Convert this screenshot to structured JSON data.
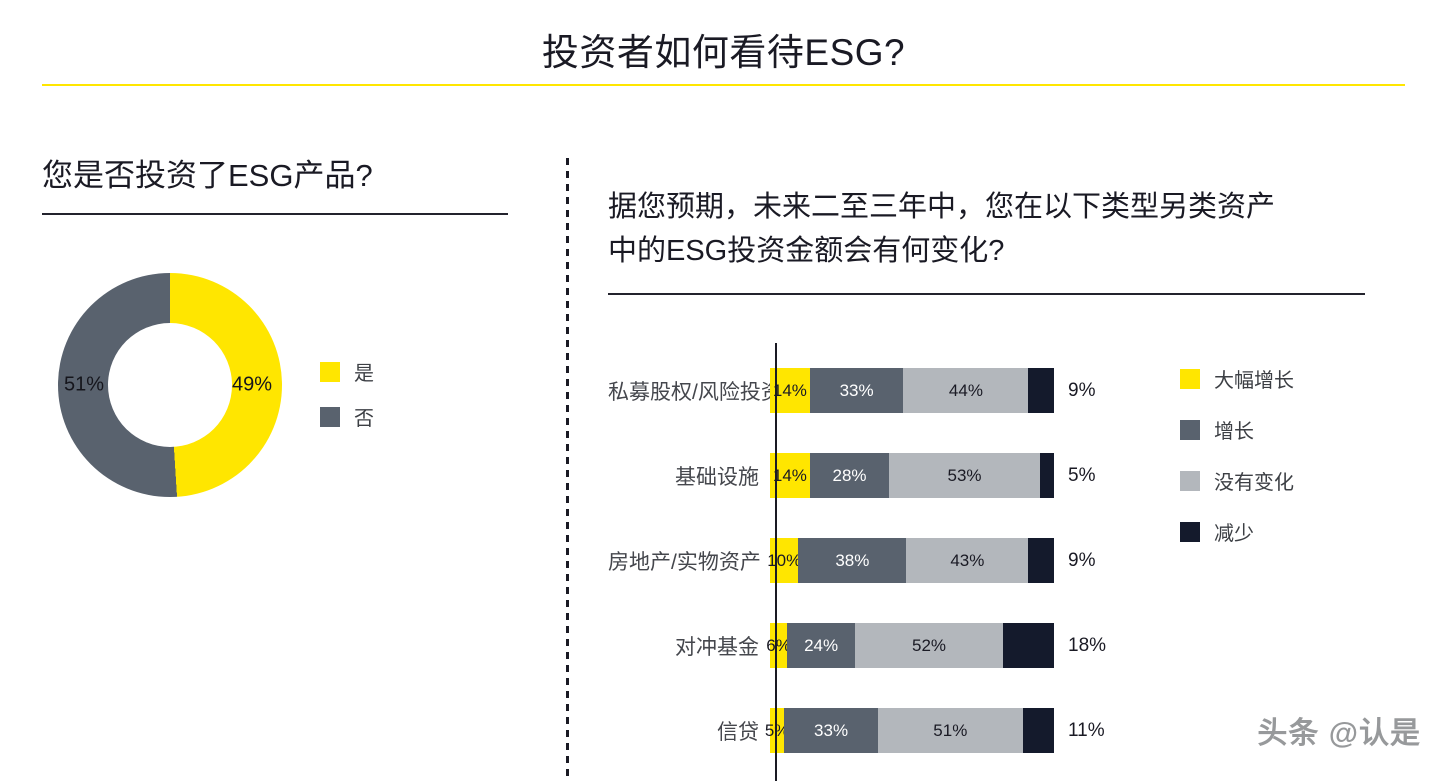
{
  "page": {
    "title": "投资者如何看待ESG?",
    "watermark": "头条 @认是",
    "accent_color": "#FFE600"
  },
  "chart_data": [
    {
      "type": "pie",
      "donut": true,
      "title": "您是否投资了ESG产品?",
      "labels": [
        "是",
        "否"
      ],
      "values": [
        49,
        51
      ],
      "value_labels": [
        "49%",
        "51%"
      ],
      "colors": [
        "#FFE600",
        "#59626E"
      ],
      "legend_position": "right"
    },
    {
      "type": "bar",
      "orientation": "horizontal",
      "stacked": true,
      "title": "据您预期，未来二至三年中，您在以下类型另类资产\n中的ESG投资金额会有何变化?",
      "categories": [
        "私募股权/风险投资",
        "基础设施",
        "房地产/实物资产",
        "对冲基金",
        "信贷"
      ],
      "series": [
        {
          "name": "大幅增长",
          "color": "#FFE600",
          "label_color": "#1a1a24",
          "label_outside": false,
          "values": [
            14,
            14,
            10,
            6,
            5
          ]
        },
        {
          "name": "增长",
          "color": "#59626E",
          "label_color": "#ffffff",
          "label_outside": false,
          "values": [
            33,
            28,
            38,
            24,
            33
          ]
        },
        {
          "name": "没有变化",
          "color": "#B3B7BC",
          "label_color": "#1a1a24",
          "label_outside": false,
          "values": [
            44,
            53,
            43,
            52,
            51
          ]
        },
        {
          "name": "减少",
          "color": "#141A2C",
          "label_color": "#1a1a24",
          "label_outside": true,
          "values": [
            9,
            5,
            9,
            18,
            11
          ]
        }
      ],
      "xlim": [
        0,
        100
      ],
      "legend_position": "right",
      "grid": false
    }
  ]
}
